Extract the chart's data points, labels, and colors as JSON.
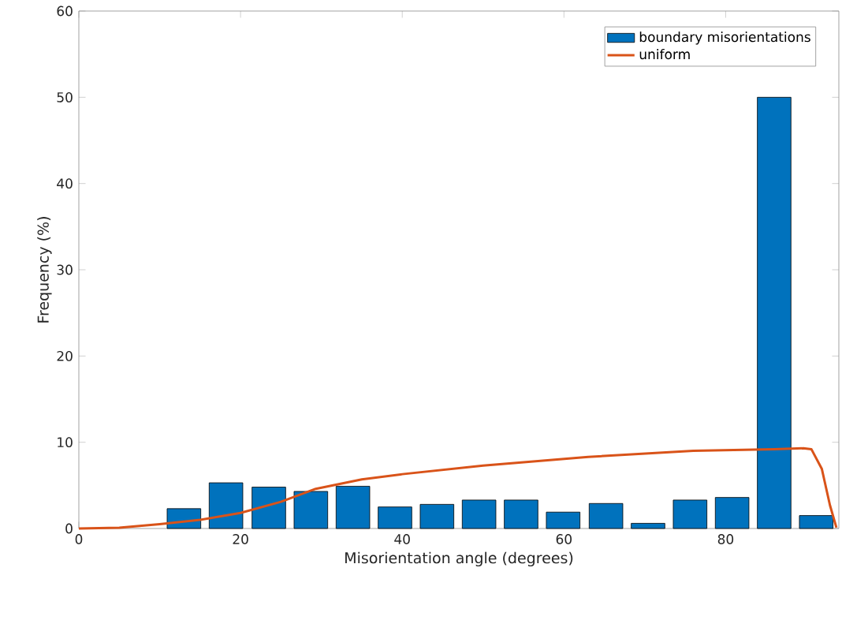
{
  "chart_data": {
    "type": "bar",
    "xlabel": "Misorientation angle (degrees)",
    "ylabel": "Frequency (%)",
    "xlim": [
      0,
      94
    ],
    "ylim": [
      0,
      60
    ],
    "xticks": [
      0,
      20,
      40,
      60,
      80
    ],
    "yticks": [
      0,
      10,
      20,
      30,
      40,
      50,
      60
    ],
    "legend": "top right",
    "series": [
      {
        "name": "boundary misorientations",
        "color": "#0072bd",
        "x": [
          13.0,
          18.2,
          23.5,
          28.7,
          33.9,
          39.1,
          44.3,
          49.5,
          54.7,
          59.9,
          65.2,
          70.4,
          75.6,
          80.8,
          86.0,
          91.2
        ],
        "values": [
          2.3,
          5.3,
          4.8,
          4.3,
          4.9,
          2.5,
          2.8,
          3.3,
          3.3,
          1.9,
          2.9,
          0.6,
          3.3,
          3.6,
          50,
          1.5
        ]
      },
      {
        "name": "uniform",
        "type": "line",
        "color": "#d95319",
        "x": [
          0,
          5,
          10,
          15,
          20,
          25,
          29.3,
          35,
          40,
          50,
          63,
          76,
          86,
          89.6,
          90.6,
          91.9,
          92.9,
          93.7
        ],
        "values": [
          0,
          0.1,
          0.5,
          1.0,
          1.8,
          3.1,
          4.6,
          5.7,
          6.3,
          7.3,
          8.3,
          9.0,
          9.2,
          9.3,
          9.2,
          6.9,
          2.7,
          0.1
        ]
      }
    ]
  }
}
